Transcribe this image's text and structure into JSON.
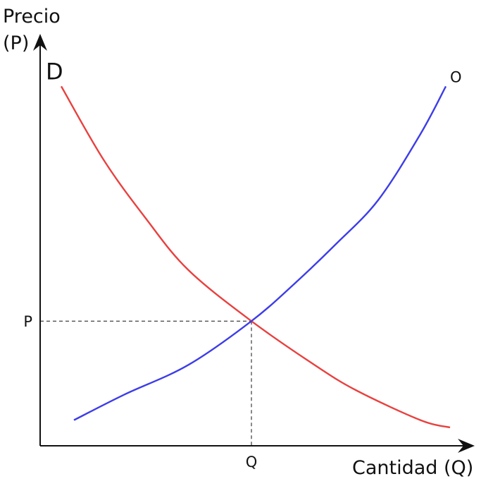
{
  "chart_data": {
    "type": "line",
    "title": "",
    "ylabel_line1": "Precio",
    "ylabel_line2": "(P)",
    "xlabel": "Cantidad (Q)",
    "grid": false,
    "x_tick_label": "Q",
    "y_tick_label": "P",
    "series": [
      {
        "name": "D",
        "color": "#e8413f",
        "x": [
          0.05,
          0.15,
          0.25,
          0.35,
          0.5,
          0.65,
          0.75,
          0.9,
          0.97
        ],
        "y": [
          0.98,
          0.78,
          0.62,
          0.48,
          0.34,
          0.22,
          0.15,
          0.07,
          0.05
        ]
      },
      {
        "name": "O",
        "color": "#3d3de8",
        "x": [
          0.08,
          0.2,
          0.35,
          0.5,
          0.6,
          0.7,
          0.8,
          0.9,
          0.96
        ],
        "y": [
          0.07,
          0.14,
          0.22,
          0.34,
          0.44,
          0.55,
          0.67,
          0.85,
          0.98
        ]
      }
    ],
    "equilibrium": {
      "x": 0.5,
      "y": 0.34
    }
  }
}
